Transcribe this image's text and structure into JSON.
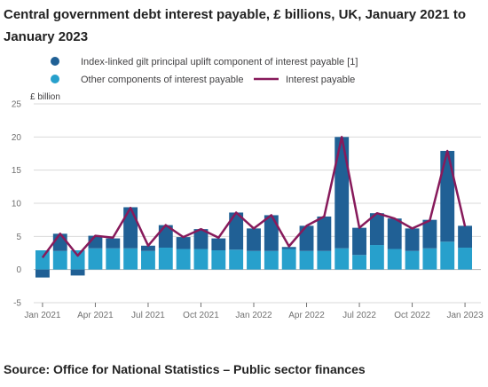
{
  "title": "Central government debt interest payable, £ billions, UK, January 2021 to January 2023",
  "source": "Source: Office for National Statistics – Public sector finances",
  "colors": {
    "index_linked": "#206095",
    "other": "#27a0cc",
    "interest": "#871a5b",
    "grid": "#d9d9d9",
    "zero": "#b3b3b3"
  },
  "chart_data": {
    "type": "bar",
    "stacked": true,
    "unit_label": "£ billion",
    "ylim": [
      -5,
      25
    ],
    "yticks": [
      -5,
      0,
      5,
      10,
      15,
      20,
      25
    ],
    "grid": true,
    "legend_position": "top",
    "categories": [
      "Jan 2021",
      "Feb 2021",
      "Mar 2021",
      "Apr 2021",
      "May 2021",
      "Jun 2021",
      "Jul 2021",
      "Aug 2021",
      "Sep 2021",
      "Oct 2021",
      "Nov 2021",
      "Dec 2021",
      "Jan 2022",
      "Feb 2022",
      "Mar 2022",
      "Apr 2022",
      "May 2022",
      "Jun 2022",
      "Jul 2022",
      "Aug 2022",
      "Sep 2022",
      "Oct 2022",
      "Nov 2022",
      "Dec 2022",
      "Jan 2023"
    ],
    "xtick_labels": [
      {
        "index": 0,
        "label": "Jan 2021"
      },
      {
        "index": 3,
        "label": "Apr 2021"
      },
      {
        "index": 6,
        "label": "Jul 2021"
      },
      {
        "index": 9,
        "label": "Oct 2021"
      },
      {
        "index": 12,
        "label": "Jan 2022"
      },
      {
        "index": 15,
        "label": "Apr 2022"
      },
      {
        "index": 18,
        "label": "Jul 2022"
      },
      {
        "index": 21,
        "label": "Oct 2022"
      },
      {
        "index": 24,
        "label": "Jan 2023"
      }
    ],
    "series": [
      {
        "name": "Index-linked gilt principal uplift component of interest payable [1]",
        "kind": "bar",
        "values": [
          -1.2,
          2.6,
          -0.9,
          1.9,
          1.5,
          6.2,
          0.8,
          3.4,
          1.8,
          3.0,
          1.8,
          5.6,
          3.4,
          5.4,
          0.3,
          3.8,
          5.2,
          16.8,
          4.1,
          4.8,
          4.6,
          3.4,
          4.3,
          13.7,
          3.3
        ]
      },
      {
        "name": "Other components of interest payable",
        "kind": "bar",
        "values": [
          2.9,
          2.8,
          2.9,
          3.2,
          3.2,
          3.2,
          2.8,
          3.3,
          3.1,
          3.1,
          2.9,
          3.0,
          2.8,
          2.8,
          3.1,
          2.8,
          2.8,
          3.2,
          2.2,
          3.7,
          3.1,
          2.8,
          3.2,
          4.2,
          3.3
        ]
      },
      {
        "name": "Interest payable",
        "kind": "line",
        "values": [
          1.8,
          5.4,
          2.1,
          5.1,
          4.8,
          9.3,
          3.6,
          6.7,
          4.9,
          6.1,
          4.8,
          8.6,
          6.2,
          8.2,
          3.5,
          6.6,
          8.0,
          20.0,
          6.3,
          8.5,
          7.7,
          6.2,
          7.4,
          17.9,
          6.5
        ]
      }
    ]
  }
}
